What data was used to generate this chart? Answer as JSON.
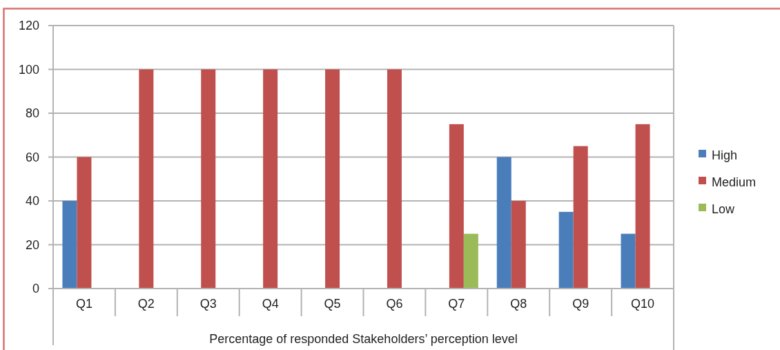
{
  "chart_data": {
    "type": "bar",
    "xlabel": "Percentage of responded Stakeholders’ perception level",
    "categories": [
      "Q1",
      "Q2",
      "Q3",
      "Q4",
      "Q5",
      "Q6",
      "Q7",
      "Q8",
      "Q9",
      "Q10"
    ],
    "series": [
      {
        "name": "High",
        "color": "#4a7ebb",
        "values": [
          40,
          0,
          0,
          0,
          0,
          0,
          0,
          60,
          35,
          25
        ]
      },
      {
        "name": "Medium",
        "color": "#c0504d",
        "values": [
          60,
          100,
          100,
          100,
          100,
          100,
          75,
          40,
          65,
          75
        ]
      },
      {
        "name": "Low",
        "color": "#9bbb59",
        "values": [
          0,
          0,
          0,
          0,
          0,
          0,
          25,
          0,
          0,
          0
        ]
      }
    ],
    "ylim": [
      0,
      120
    ],
    "yticks": [
      0,
      20,
      40,
      60,
      80,
      100,
      120
    ],
    "grid": "y",
    "legend": "right"
  }
}
